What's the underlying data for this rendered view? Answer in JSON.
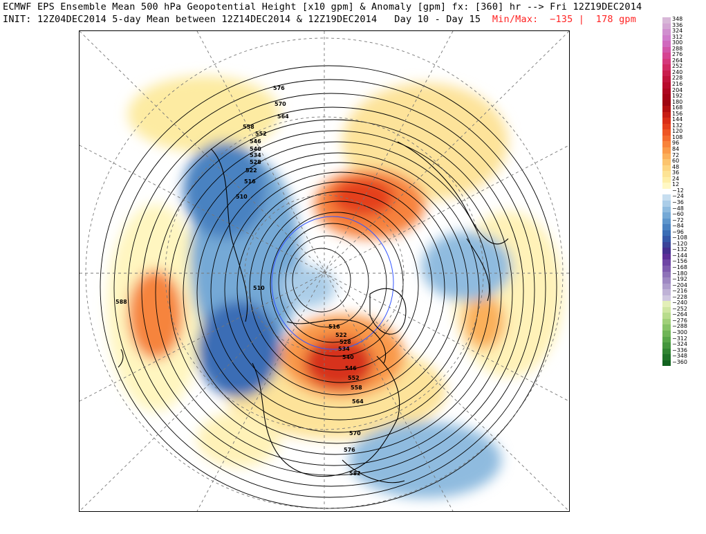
{
  "header": {
    "line1": "ECMWF EPS Ensemble Mean 500 hPa Geopotential Height [x10 gpm] & Anomaly [gpm] fx: [360] hr --> Fri 12Z19DEC2014",
    "line2_left": "INIT: 12Z04DEC2014 5-day Mean between 12Z14DEC2014 & 12Z19DEC2014   Day 10 - Day 15",
    "line2_minmax": "Min/Max:  −135 |  178 gpm"
  },
  "contour_labels": [
    "576",
    "570",
    "564",
    "558",
    "552",
    "546",
    "540",
    "534",
    "528",
    "522",
    "516",
    "510",
    "510",
    "588",
    "516",
    "522",
    "528",
    "534",
    "540",
    "546",
    "552",
    "558",
    "564",
    "570",
    "576",
    "582"
  ],
  "legend": {
    "levels": [
      {
        "label": "348",
        "color": "#d8b8d8"
      },
      {
        "label": "336",
        "color": "#d3a6d3"
      },
      {
        "label": "324",
        "color": "#d08fcf"
      },
      {
        "label": "312",
        "color": "#cf7ccb"
      },
      {
        "label": "300",
        "color": "#d069be"
      },
      {
        "label": "288",
        "color": "#d255a9"
      },
      {
        "label": "276",
        "color": "#d64492"
      },
      {
        "label": "264",
        "color": "#d5387c"
      },
      {
        "label": "252",
        "color": "#d12a64"
      },
      {
        "label": "240",
        "color": "#c91e4d"
      },
      {
        "label": "228",
        "color": "#c0133b"
      },
      {
        "label": "216",
        "color": "#b80b2c"
      },
      {
        "label": "204",
        "color": "#ae0620"
      },
      {
        "label": "192",
        "color": "#a50316"
      },
      {
        "label": "180",
        "color": "#9e0510"
      },
      {
        "label": "168",
        "color": "#b30f10"
      },
      {
        "label": "156",
        "color": "#c71d14"
      },
      {
        "label": "144",
        "color": "#d92d17"
      },
      {
        "label": "132",
        "color": "#e53f1c"
      },
      {
        "label": "120",
        "color": "#ee5524"
      },
      {
        "label": "108",
        "color": "#f46b2e"
      },
      {
        "label": "96",
        "color": "#f8833a"
      },
      {
        "label": "84",
        "color": "#fa9a48"
      },
      {
        "label": "72",
        "color": "#fbb05a"
      },
      {
        "label": "60",
        "color": "#fcc46d"
      },
      {
        "label": "48",
        "color": "#fdd581"
      },
      {
        "label": "36",
        "color": "#fde394"
      },
      {
        "label": "24",
        "color": "#feeea7"
      },
      {
        "label": "12",
        "color": "#fff8c4"
      },
      {
        "label": "−12",
        "color": "#ffffff"
      },
      {
        "label": "−24",
        "color": "#c7def0"
      },
      {
        "label": "−36",
        "color": "#abcde8"
      },
      {
        "label": "−48",
        "color": "#8fbbdf"
      },
      {
        "label": "−60",
        "color": "#75a9d6"
      },
      {
        "label": "−72",
        "color": "#5e96cc"
      },
      {
        "label": "−84",
        "color": "#4a82c1"
      },
      {
        "label": "−96",
        "color": "#3a6db5"
      },
      {
        "label": "−108",
        "color": "#3558a8"
      },
      {
        "label": "−120",
        "color": "#3b4499"
      },
      {
        "label": "−132",
        "color": "#452f8f"
      },
      {
        "label": "−144",
        "color": "#5d2e98"
      },
      {
        "label": "−156",
        "color": "#6e45a4"
      },
      {
        "label": "−168",
        "color": "#7e5bae"
      },
      {
        "label": "−180",
        "color": "#8e72b8"
      },
      {
        "label": "−192",
        "color": "#9e88c2"
      },
      {
        "label": "−204",
        "color": "#ae9dcc"
      },
      {
        "label": "−216",
        "color": "#bfb2d6"
      },
      {
        "label": "−228",
        "color": "#cfc7e0"
      },
      {
        "label": "−240",
        "color": "#e3efb8"
      },
      {
        "label": "−252",
        "color": "#cfe6a2"
      },
      {
        "label": "−264",
        "color": "#b8dc8d"
      },
      {
        "label": "−276",
        "color": "#a0d079"
      },
      {
        "label": "−288",
        "color": "#87c367"
      },
      {
        "label": "−300",
        "color": "#6fb557"
      },
      {
        "label": "−312",
        "color": "#58a649"
      },
      {
        "label": "−324",
        "color": "#44963d"
      },
      {
        "label": "−336",
        "color": "#318532"
      },
      {
        "label": "−348",
        "color": "#207428"
      },
      {
        "label": "−360",
        "color": "#12621f"
      }
    ]
  }
}
